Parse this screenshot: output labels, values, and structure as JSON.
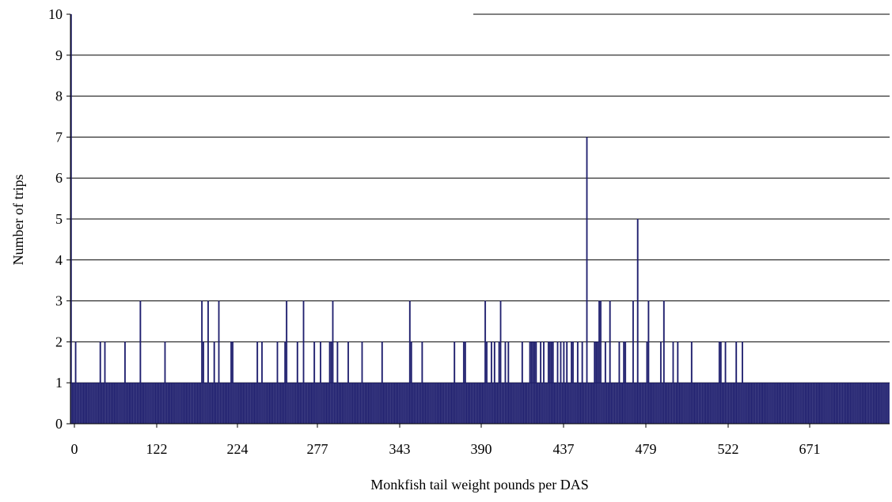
{
  "chart_data": {
    "type": "bar",
    "title": "",
    "xlabel": "Monkfish tail weight pounds per DAS",
    "ylabel": "Number of trips",
    "ylim": [
      0,
      10
    ],
    "grid": true,
    "legend": "none",
    "bar_color": "#1f1f6e",
    "grid_color": "#000000",
    "y_ticks": [
      "0",
      "1",
      "2",
      "3",
      "4",
      "5",
      "6",
      "7",
      "8",
      "9",
      "10"
    ],
    "x_tick_labels": [
      "0",
      "122",
      "224",
      "277",
      "343",
      "390",
      "437",
      "479",
      "522",
      "671"
    ],
    "values": [
      10,
      1,
      1,
      2,
      1,
      1,
      1,
      1,
      1,
      1,
      1,
      1,
      1,
      1,
      1,
      1,
      1,
      1,
      1,
      2,
      1,
      1,
      2,
      1,
      1,
      1,
      1,
      1,
      1,
      1,
      1,
      1,
      1,
      1,
      1,
      2,
      1,
      1,
      1,
      1,
      1,
      1,
      1,
      1,
      1,
      3,
      1,
      1,
      1,
      1,
      1,
      1,
      1,
      1,
      1,
      1,
      1,
      1,
      1,
      1,
      1,
      2,
      1,
      1,
      1,
      1,
      1,
      1,
      1,
      1,
      1,
      1,
      1,
      1,
      1,
      1,
      1,
      1,
      1,
      1,
      1,
      1,
      1,
      1,
      1,
      3,
      2,
      1,
      1,
      3,
      1,
      1,
      1,
      2,
      1,
      1,
      3,
      1,
      1,
      1,
      1,
      1,
      1,
      1,
      2,
      2,
      1,
      1,
      1,
      1,
      1,
      1,
      1,
      1,
      1,
      1,
      1,
      1,
      1,
      1,
      1,
      2,
      1,
      1,
      2,
      1,
      1,
      1,
      1,
      1,
      1,
      1,
      1,
      1,
      2,
      1,
      1,
      1,
      1,
      2,
      3,
      1,
      1,
      1,
      1,
      1,
      1,
      2,
      1,
      1,
      1,
      3,
      1,
      1,
      1,
      1,
      1,
      1,
      2,
      1,
      1,
      1,
      2,
      1,
      1,
      1,
      1,
      1,
      2,
      2,
      3,
      1,
      1,
      2,
      1,
      1,
      1,
      1,
      1,
      1,
      2,
      1,
      1,
      1,
      1,
      1,
      1,
      1,
      1,
      2,
      1,
      1,
      1,
      1,
      1,
      1,
      1,
      1,
      1,
      1,
      1,
      1,
      2,
      1,
      1,
      1,
      1,
      1,
      1,
      1,
      1,
      1,
      1,
      1,
      1,
      1,
      1,
      1,
      1,
      1,
      3,
      2,
      1,
      1,
      1,
      1,
      1,
      1,
      2,
      1,
      1,
      1,
      1,
      1,
      1,
      1,
      1,
      1,
      1,
      1,
      1,
      1,
      1,
      1,
      1,
      1,
      1,
      1,
      1,
      2,
      1,
      1,
      1,
      1,
      1,
      2,
      2,
      1,
      1,
      1,
      1,
      1,
      1,
      1,
      1,
      1,
      1,
      1,
      1,
      3,
      2,
      1,
      1,
      2,
      1,
      2,
      1,
      1,
      2,
      3,
      1,
      1,
      2,
      1,
      2,
      1,
      1,
      1,
      1,
      1,
      1,
      1,
      1,
      2,
      1,
      1,
      1,
      1,
      2,
      2,
      2,
      2,
      2,
      1,
      1,
      2,
      1,
      2,
      1,
      1,
      2,
      2,
      2,
      2,
      1,
      1,
      2,
      1,
      2,
      1,
      2,
      1,
      2,
      1,
      1,
      2,
      2,
      1,
      1,
      2,
      1,
      1,
      2,
      1,
      1,
      7,
      1,
      1,
      1,
      1,
      2,
      2,
      2,
      3,
      3,
      1,
      1,
      2,
      1,
      1,
      3,
      1,
      1,
      1,
      1,
      1,
      2,
      1,
      1,
      2,
      2,
      1,
      1,
      1,
      1,
      3,
      1,
      1,
      5,
      1,
      1,
      1,
      1,
      1,
      2,
      3,
      1,
      1,
      1,
      1,
      1,
      1,
      1,
      2,
      1,
      3,
      1,
      1,
      1,
      1,
      1,
      2,
      1,
      1,
      2,
      1,
      1,
      1,
      1,
      1,
      1,
      1,
      1,
      2,
      1,
      1,
      1,
      1,
      1,
      1,
      1,
      1,
      1,
      1,
      1,
      1,
      1,
      1,
      1,
      1,
      1,
      2,
      2,
      1,
      1,
      2,
      1,
      1,
      1,
      1,
      1,
      1,
      2,
      1,
      1,
      1,
      2,
      1,
      1,
      1,
      1,
      1,
      1,
      1,
      1,
      1,
      1,
      1,
      1,
      1,
      1,
      1,
      1,
      1,
      1,
      1,
      1,
      1,
      1,
      1,
      1,
      1,
      1,
      1,
      1,
      1,
      1,
      1,
      1,
      1,
      1,
      1,
      1,
      1,
      1,
      1,
      1,
      1,
      1,
      1,
      1,
      1,
      1,
      1,
      1,
      1,
      1,
      1,
      1,
      1,
      1,
      1,
      1,
      1,
      1,
      1,
      1,
      1,
      1,
      1,
      1,
      1,
      1,
      1,
      1,
      1,
      1,
      1,
      1,
      1,
      1,
      1,
      1,
      1,
      1,
      1,
      1,
      1,
      1,
      1,
      1,
      1,
      1,
      1,
      1,
      1,
      1,
      1,
      1,
      1,
      1,
      1
    ]
  }
}
